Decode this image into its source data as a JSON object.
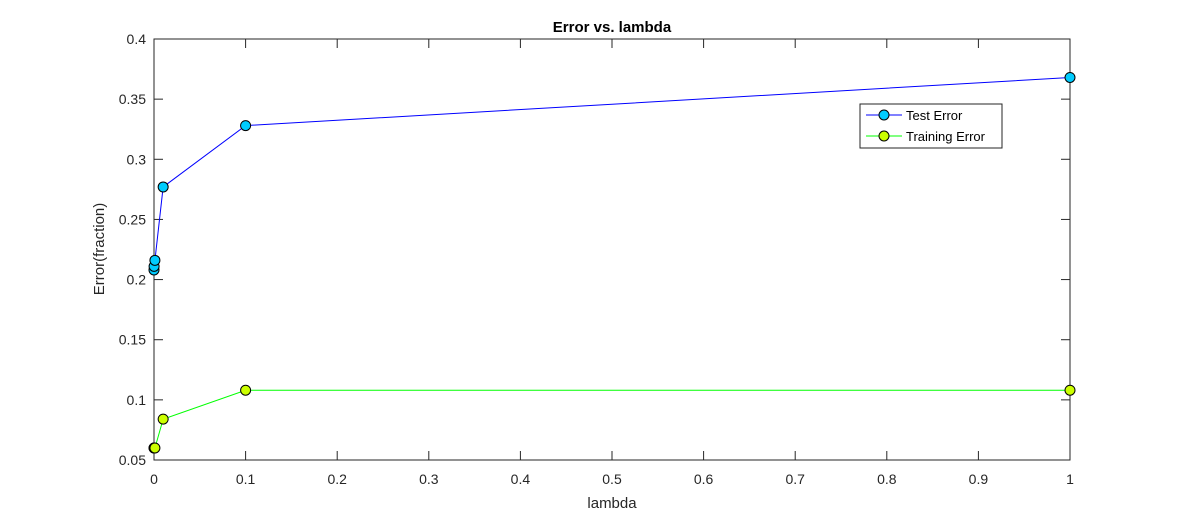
{
  "chart_data": {
    "type": "line",
    "title": "Error vs. lambda",
    "xlabel": "lambda",
    "ylabel": "Error(fraction)",
    "xlim": [
      0,
      1
    ],
    "ylim": [
      0.05,
      0.4
    ],
    "x_ticks": [
      0,
      0.1,
      0.2,
      0.3,
      0.4,
      0.5,
      0.6,
      0.7,
      0.8,
      0.9,
      1
    ],
    "x_tick_labels": [
      "0",
      "0.1",
      "0.2",
      "0.3",
      "0.4",
      "0.5",
      "0.6",
      "0.7",
      "0.8",
      "0.9",
      "1"
    ],
    "y_ticks": [
      0.05,
      0.1,
      0.15,
      0.2,
      0.25,
      0.3,
      0.35,
      0.4
    ],
    "y_tick_labels": [
      "0.05",
      "0.1",
      "0.15",
      "0.2",
      "0.25",
      "0.3",
      "0.35",
      "0.4"
    ],
    "grid": false,
    "legend_position": "top-right",
    "series": [
      {
        "name": "Test Error",
        "line_color": "#0000ff",
        "marker_color": "#00ccff",
        "x": [
          0,
          0.0001,
          0.001,
          0.01,
          0.1,
          1
        ],
        "y": [
          0.208,
          0.211,
          0.216,
          0.277,
          0.328,
          0.368
        ]
      },
      {
        "name": "Training Error",
        "line_color": "#00ff00",
        "marker_color": "#ccff00",
        "x": [
          0,
          0.0001,
          0.001,
          0.01,
          0.1,
          1
        ],
        "y": [
          0.06,
          0.06,
          0.06,
          0.084,
          0.108,
          0.108
        ]
      }
    ]
  }
}
